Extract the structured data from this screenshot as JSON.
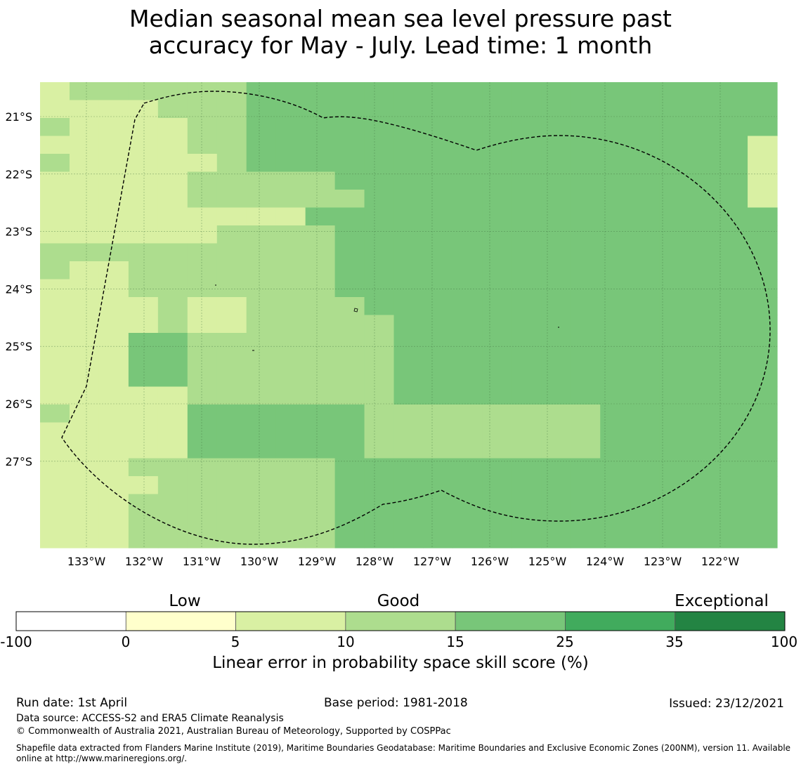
{
  "title": {
    "line1": "Median seasonal mean sea level pressure past",
    "line2": "accuracy for May - July. Lead time: 1 month"
  },
  "map": {
    "lon_labels": [
      "133°W",
      "132°W",
      "131°W",
      "130°W",
      "129°W",
      "128°W",
      "127°W",
      "126°W",
      "125°W",
      "124°W",
      "123°W",
      "122°W"
    ],
    "lat_labels": [
      "21°S",
      "22°S",
      "23°S",
      "24°S",
      "25°S",
      "26°S",
      "27°S"
    ],
    "boundary_style": "dashed black line",
    "grid": true
  },
  "colorbar": {
    "ticks": [
      "-100",
      "0",
      "5",
      "10",
      "15",
      "25",
      "35",
      "100"
    ],
    "quality": [
      "Low",
      "Good",
      "Exceptional"
    ],
    "label": "Linear error in probability space skill score (%)",
    "colors": [
      "#ffffff",
      "#ffffcc",
      "#d9f0a3",
      "#addd8e",
      "#78c679",
      "#41ab5d",
      "#238443"
    ]
  },
  "chart_data": {
    "type": "heatmap",
    "title": "Median seasonal mean sea level pressure past accuracy for May - July. Lead time: 1 month",
    "colorbar_label": "Linear error in probability space skill score (%)",
    "class_bounds": [
      -100,
      0,
      5,
      10,
      15,
      25,
      35,
      100
    ],
    "class_colors": [
      "#ffffff",
      "#ffffcc",
      "#d9f0a3",
      "#addd8e",
      "#78c679",
      "#41ab5d",
      "#238443"
    ],
    "x_labels": [
      "133°W",
      "132°W",
      "131°W",
      "130°W",
      "129°W",
      "128°W",
      "127°W",
      "126°W",
      "125°W",
      "124°W",
      "123°W",
      "122°W"
    ],
    "y_labels": [
      "21°S",
      "22°S",
      "23°S",
      "24°S",
      "25°S",
      "26°S",
      "27°S"
    ],
    "grid_classes": [
      "2333333444444444444444444",
      "2222333444444444444444444",
      "3222233444444444444444444",
      "2222233444444444444444442",
      "3222223444444444444444442",
      "2222233333444444444444442",
      "2222233333344444444444442",
      "2222222224444444444444444",
      "2222223333444444444444444",
      "3333333333444444444444444",
      "3223333333444444444444444",
      "2223333333444444444444444",
      "2222322333344444444444444",
      "2222322333334444444444444",
      "2224433333334444444444444",
      "2224433333334444444444444",
      "2224433333334444444444444",
      "2222233333334444444444444",
      "3222244444433333333444444",
      "2222244444433333333444444",
      "2222244444433333333444444",
      "2223333333444444444444444",
      "2222333333444444444444444",
      "2223333333444444444444444",
      "2223333333444444444444444",
      "2223333333444444444444444"
    ]
  },
  "footer": {
    "run_date": "Run date: 1st April",
    "base_period": "Base period: 1981-2018",
    "issued": "Issued: 23/12/2021",
    "data_source": "Data source: ACCESS-S2 and ERA5 Climate Reanalysis",
    "copyright": "© Commonwealth of Australia 2021, Australian Bureau of Meteorology, Supported by COSPPac",
    "shapefile_line1": "Shapefile data extracted from Flanders Marine Institute (2019), Maritime Boundaries Geodatabase: Maritime Boundaries and Exclusive Economic Zones (200NM), version 11. Available",
    "shapefile_line2": "online at http://www.marineregions.org/."
  }
}
